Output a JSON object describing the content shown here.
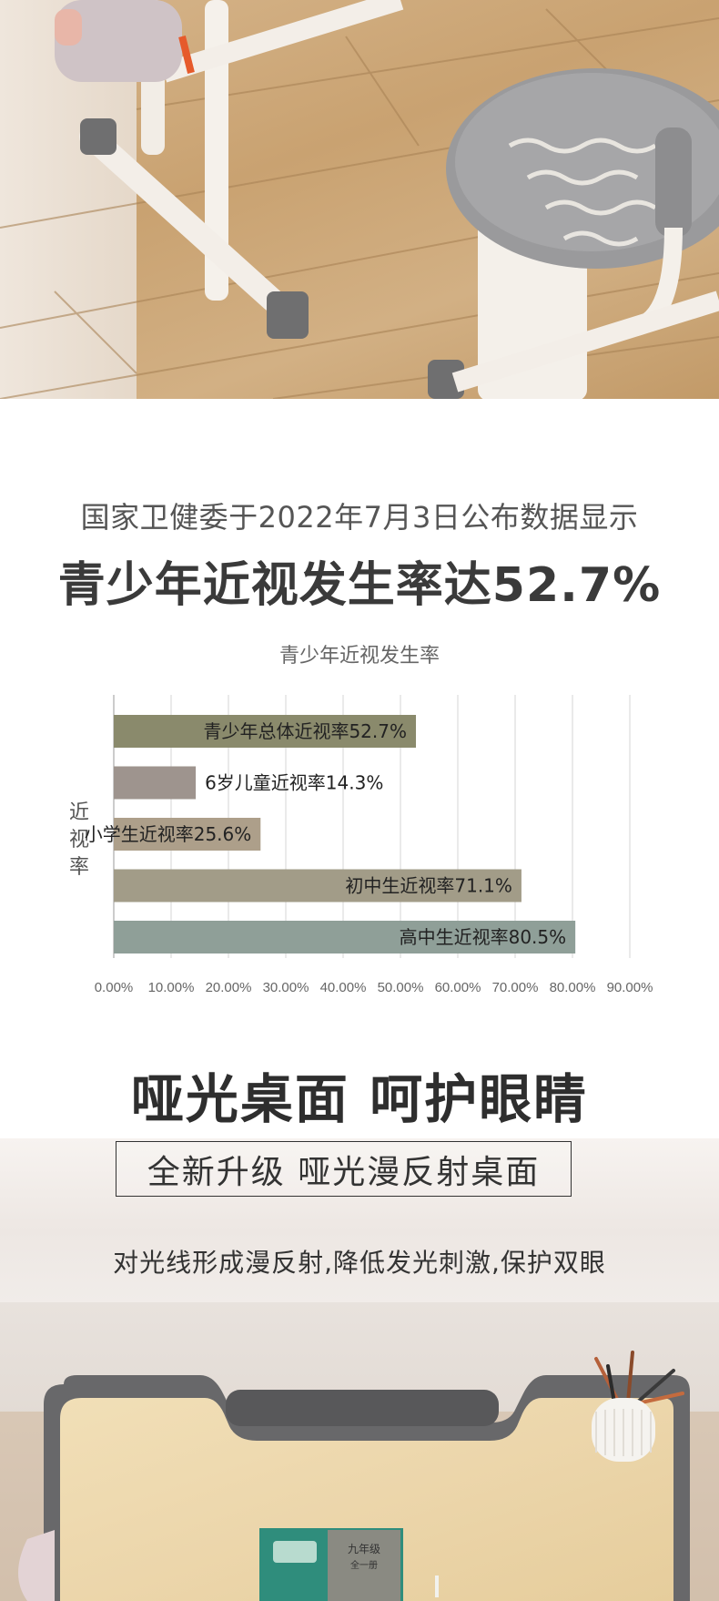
{
  "header": {
    "subtitle": "国家卫健委于2022年7月3日公布数据显示",
    "headline": "青少年近视发生率达52.7%"
  },
  "chart_data": {
    "type": "bar",
    "orientation": "horizontal",
    "title": "青少年近视发生率",
    "ylabel": "近视率",
    "xlim": [
      0,
      90
    ],
    "x_ticks": [
      "0.00%",
      "10.00%",
      "20.00%",
      "30.00%",
      "40.00%",
      "50.00%",
      "60.00%",
      "70.00%",
      "80.00%",
      "90.00%"
    ],
    "grid": true,
    "bars": [
      {
        "label": "青少年总体近视率52.7%",
        "value": 52.7,
        "color": "#8a8a6c",
        "label_inside": true
      },
      {
        "label": "6岁儿童近视率14.3%",
        "value": 14.3,
        "color": "#9e948e",
        "label_inside": false
      },
      {
        "label": "小学生近视率25.6%",
        "value": 25.6,
        "color": "#ad9f8a",
        "label_inside": true
      },
      {
        "label": "初中生近视率71.1%",
        "value": 71.1,
        "color": "#a29c88",
        "label_inside": true
      },
      {
        "label": "高中生近视率80.5%",
        "value": 80.5,
        "color": "#8f9f98",
        "label_inside": true
      }
    ]
  },
  "feature": {
    "title": "哑光桌面 呵护眼睛",
    "box_text": "全新升级 哑光漫反射桌面",
    "description": "对光线形成漫反射,降低发光刺激,保护双眼"
  },
  "book": {
    "title_line1": "九年级",
    "title_line2": "全一册"
  }
}
